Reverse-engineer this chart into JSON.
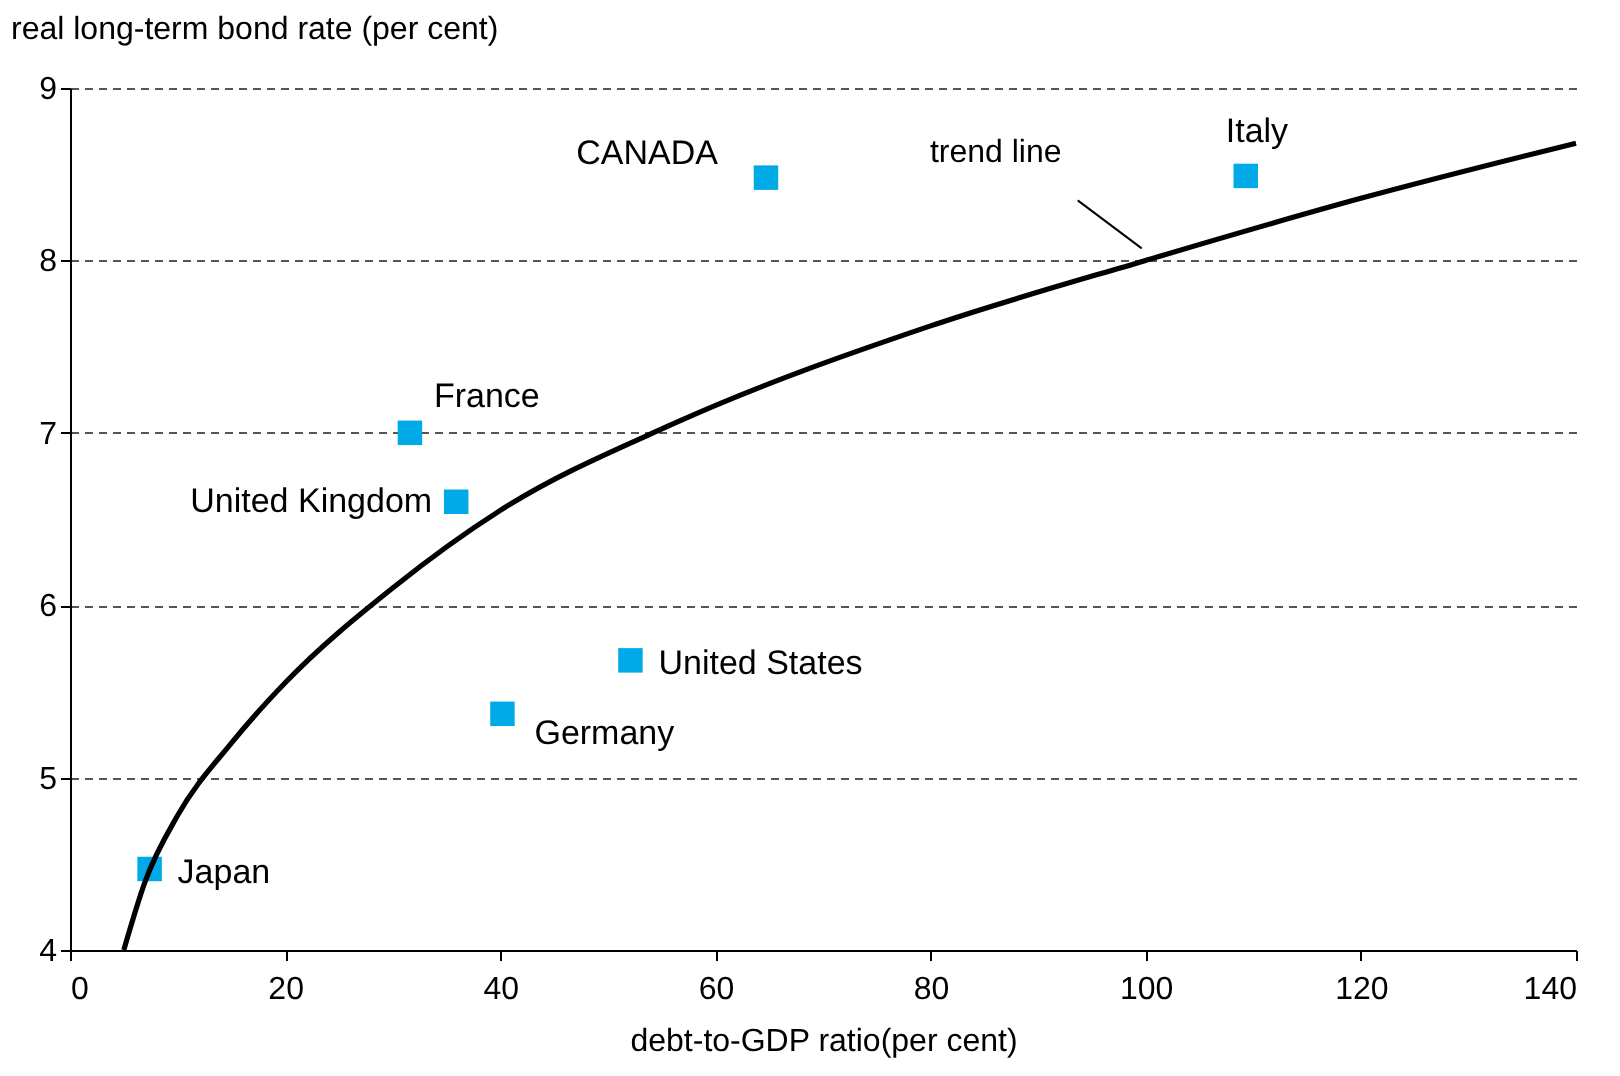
{
  "chart_data": {
    "type": "scatter",
    "xlabel": "debt-to-GDP ratio(per cent)",
    "ylabel": "real long-term bond rate (per cent)",
    "xlim": [
      0,
      140
    ],
    "xticks": [
      0,
      20,
      40,
      60,
      80,
      100,
      120,
      140
    ],
    "ylim": [
      4,
      9
    ],
    "yticks": [
      4,
      5,
      6,
      7,
      8,
      9
    ],
    "grid": "y",
    "annotations": [
      {
        "text": "trend line",
        "x": 100,
        "y": 8.0
      }
    ],
    "series": [
      {
        "name": "Japan",
        "color": "#00aae6",
        "marker": "square",
        "x": [
          7.4
        ],
        "values": [
          4.47
        ]
      },
      {
        "name": "France",
        "color": "#00aae6",
        "marker": "square",
        "x": [
          31.6
        ],
        "values": [
          7.0
        ]
      },
      {
        "name": "United Kingdom",
        "color": "#00aae6",
        "marker": "square",
        "x": [
          35.9
        ],
        "values": [
          6.6
        ]
      },
      {
        "name": "Germany",
        "color": "#00aae6",
        "marker": "square",
        "x": [
          40.2
        ],
        "values": [
          5.37
        ]
      },
      {
        "name": "United States",
        "color": "#00aae6",
        "marker": "square",
        "x": [
          52.1
        ],
        "values": [
          5.68
        ]
      },
      {
        "name": "CANADA",
        "color": "#00aae6",
        "marker": "square",
        "x": [
          64.7
        ],
        "values": [
          8.48
        ]
      },
      {
        "name": "Italy",
        "color": "#00aae6",
        "marker": "square",
        "x": [
          109.3
        ],
        "values": [
          8.49
        ]
      },
      {
        "type": "line",
        "color": "#000000",
        "x": [
          5,
          7,
          10,
          15,
          20,
          30,
          40,
          56,
          80,
          100,
          120,
          140
        ],
        "values": [
          4.0,
          4.4,
          4.78,
          5.2,
          5.55,
          6.1,
          6.55,
          7.05,
          7.62,
          8.0,
          8.36,
          8.68
        ]
      }
    ]
  }
}
